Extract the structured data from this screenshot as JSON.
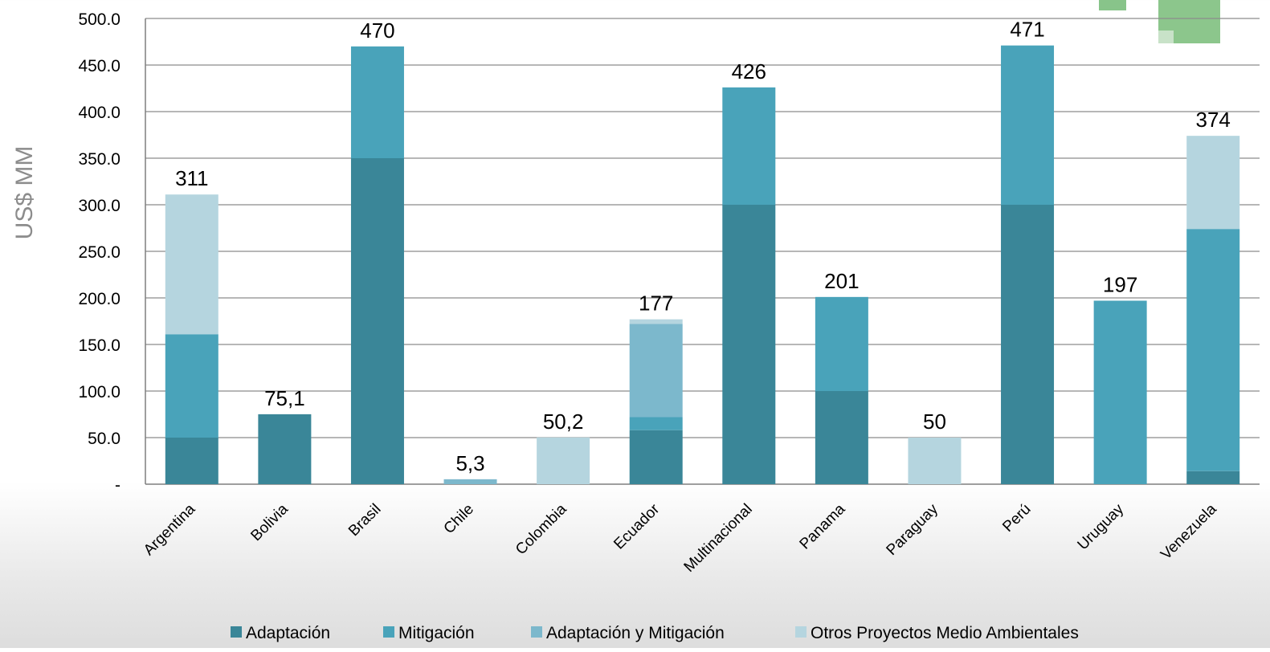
{
  "chart_data": {
    "type": "bar",
    "stacked": true,
    "ylabel": "US$ MM",
    "xlabel": "",
    "ylim": [
      0,
      500
    ],
    "yticks": [
      "-",
      "50.0",
      "100.0",
      "150.0",
      "200.0",
      "250.0",
      "300.0",
      "350.0",
      "400.0",
      "450.0",
      "500.0"
    ],
    "grid": true,
    "legend_position": "bottom",
    "categories": [
      "Argentina",
      "Bolivia",
      "Brasil",
      "Chile",
      "Colombia",
      "Ecuador",
      "Multinacional",
      "Panama",
      "Paraguay",
      "Perú",
      "Uruguay",
      "Venezuela"
    ],
    "series": [
      {
        "name": "Adaptación",
        "color": "#3a8698",
        "values": [
          50,
          75.1,
          350,
          0,
          0,
          58,
          300,
          100,
          0,
          300,
          0,
          14
        ]
      },
      {
        "name": "Mitigación",
        "color": "#49a3ba",
        "values": [
          111,
          0,
          120,
          0,
          0,
          14,
          126,
          101,
          0,
          171,
          197,
          260
        ]
      },
      {
        "name": "Adaptación y Mitigación",
        "color": "#7cb8cc",
        "values": [
          0,
          0,
          0,
          5.3,
          0,
          100,
          0,
          0,
          0,
          0,
          0,
          0
        ]
      },
      {
        "name": "Otros Proyectos Medio Ambientales",
        "color": "#b5d5df",
        "values": [
          150,
          0,
          0,
          0,
          50.2,
          5,
          0,
          0,
          50,
          0,
          0,
          100
        ]
      }
    ],
    "totals_labels": [
      "311",
      "75,1",
      "470",
      "5,3",
      "50,2",
      "177",
      "426",
      "201",
      "50",
      "471",
      "197",
      "374"
    ],
    "totals": [
      311,
      75.1,
      470,
      5.3,
      50.2,
      177,
      426,
      201,
      50,
      471,
      197,
      374
    ]
  }
}
